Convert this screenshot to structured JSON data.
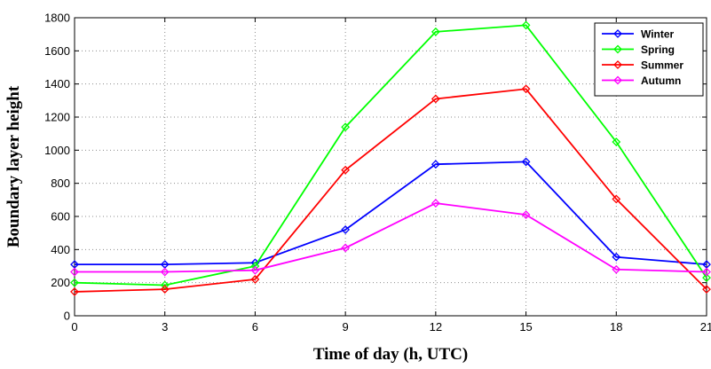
{
  "chart_data": {
    "type": "line",
    "title": "",
    "xlabel": "Time of day (h, UTC)",
    "ylabel": "Boundary layer height",
    "x": [
      0,
      3,
      6,
      9,
      12,
      15,
      18,
      21
    ],
    "x_ticks": [
      "0",
      "3",
      "6",
      "9",
      "12",
      "15",
      "18",
      "21"
    ],
    "y_ticks": [
      "0",
      "200",
      "400",
      "600",
      "800",
      "1000",
      "1200",
      "1400",
      "1600",
      "1800"
    ],
    "xlim": [
      0,
      21
    ],
    "ylim": [
      0,
      1800
    ],
    "grid": true,
    "grid_style": "dotted",
    "legend_position": "top-right",
    "marker": "diamond",
    "series": [
      {
        "name": "Winter",
        "color": "#0000ff",
        "values": [
          310,
          310,
          320,
          520,
          915,
          930,
          355,
          310
        ]
      },
      {
        "name": "Spring",
        "color": "#00ff00",
        "values": [
          200,
          185,
          300,
          1140,
          1715,
          1755,
          1050,
          230
        ]
      },
      {
        "name": "Summer",
        "color": "#ff0000",
        "values": [
          145,
          160,
          220,
          880,
          1310,
          1370,
          705,
          160
        ]
      },
      {
        "name": "Autumn",
        "color": "#ff00ff",
        "values": [
          265,
          265,
          275,
          410,
          680,
          610,
          280,
          265
        ]
      }
    ]
  }
}
